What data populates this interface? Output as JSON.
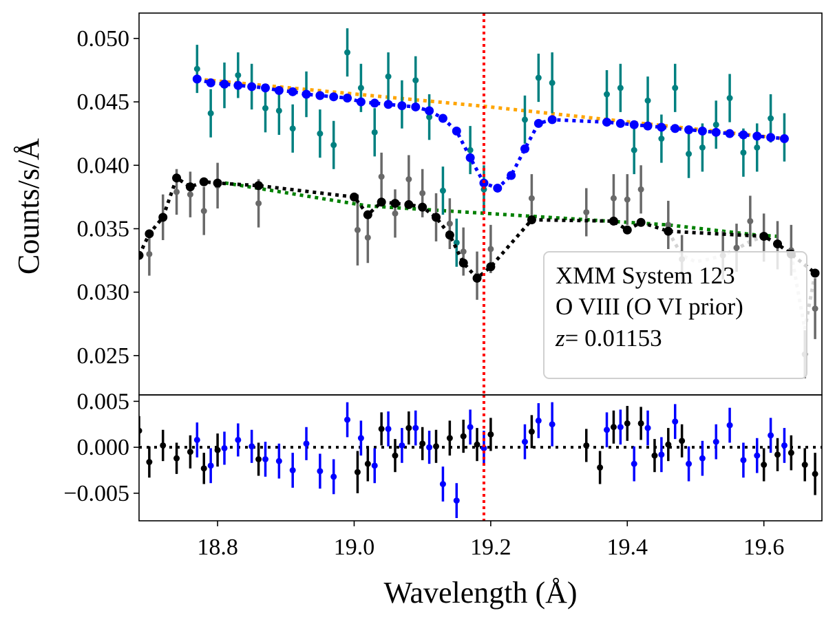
{
  "chart_data": {
    "type": "scatter",
    "xlabel": "Wavelength (Å)",
    "ylabel": "Counts/s/Å",
    "xlim": [
      18.685,
      19.685
    ],
    "x_ticks": [
      "18.8",
      "19.0",
      "19.2",
      "19.4",
      "19.6"
    ],
    "legend": {
      "location": "lower-right",
      "lines": [
        "XMM System 123",
        "O VIII (O VI prior)",
        "z",
        "= 0.01153"
      ]
    },
    "reference_line": {
      "x": 19.19,
      "color": "#ff0000",
      "style": "dotted"
    },
    "main_panel": {
      "ylim": [
        0.0219,
        0.052
      ],
      "y_ticks": [
        "0.025",
        "0.030",
        "0.035",
        "0.040",
        "0.045",
        "0.050"
      ],
      "series": [
        {
          "name": "upper continuum",
          "kind": "line",
          "color": "#ffa500",
          "x": [
            18.77,
            19.19,
            19.63
          ],
          "y": [
            0.0468,
            0.04465,
            0.0421
          ]
        },
        {
          "name": "upper model",
          "kind": "line-markers",
          "color": "#0000ff",
          "x": [
            18.77,
            18.79,
            18.81,
            18.83,
            18.85,
            18.87,
            18.89,
            18.91,
            18.93,
            18.95,
            18.97,
            18.99,
            19.01,
            19.03,
            19.05,
            19.07,
            19.09,
            19.11,
            19.13,
            19.15,
            19.17,
            19.19,
            19.21,
            19.23,
            19.25,
            19.27,
            19.29,
            19.37,
            19.39,
            19.41,
            19.43,
            19.45,
            19.47,
            19.49,
            19.51,
            19.53,
            19.55,
            19.57,
            19.59,
            19.61,
            19.63
          ],
          "y": [
            0.0468,
            0.0465,
            0.0464,
            0.0463,
            0.0462,
            0.0461,
            0.0459,
            0.0458,
            0.0456,
            0.0455,
            0.0454,
            0.0453,
            0.045,
            0.0449,
            0.0448,
            0.0447,
            0.0446,
            0.0443,
            0.0437,
            0.0427,
            0.0406,
            0.0386,
            0.0382,
            0.0392,
            0.0413,
            0.0433,
            0.0436,
            0.0434,
            0.0433,
            0.0432,
            0.0431,
            0.043,
            0.0429,
            0.0428,
            0.0427,
            0.0426,
            0.0425,
            0.0424,
            0.0423,
            0.0422,
            0.0421
          ]
        },
        {
          "name": "upper data",
          "kind": "errorbar",
          "color": "#008080",
          "x": [
            18.77,
            18.79,
            18.81,
            18.83,
            18.85,
            18.87,
            18.89,
            18.91,
            18.93,
            18.95,
            18.97,
            18.99,
            19.01,
            19.03,
            19.05,
            19.07,
            19.09,
            19.11,
            19.13,
            19.15,
            19.17,
            19.19,
            19.25,
            19.27,
            19.29,
            19.37,
            19.39,
            19.41,
            19.43,
            19.45,
            19.47,
            19.49,
            19.51,
            19.53,
            19.55,
            19.57,
            19.59,
            19.61,
            19.63
          ],
          "y": [
            0.0476,
            0.0441,
            0.0463,
            0.0471,
            0.0462,
            0.0445,
            0.0443,
            0.0429,
            0.0456,
            0.0425,
            0.0416,
            0.0489,
            0.0461,
            0.0426,
            0.047,
            0.0448,
            0.0467,
            0.0438,
            0.038,
            0.0339,
            0.0412,
            0.0381,
            0.0436,
            0.0469,
            0.0465,
            0.0456,
            0.0461,
            0.0412,
            0.0451,
            0.0421,
            0.0461,
            0.0409,
            0.0414,
            0.0432,
            0.0453,
            0.041,
            0.0414,
            0.0437,
            0.0422
          ],
          "err": [
            0.0019,
            0.0019,
            0.0018,
            0.0018,
            0.0018,
            0.0019,
            0.0019,
            0.0019,
            0.0018,
            0.0019,
            0.0019,
            0.0019,
            0.0019,
            0.0019,
            0.0019,
            0.0019,
            0.0019,
            0.0018,
            0.0019,
            0.0019,
            0.0019,
            0.0019,
            0.0019,
            0.0019,
            0.0024,
            0.0019,
            0.0019,
            0.0019,
            0.0019,
            0.0019,
            0.0019,
            0.0019,
            0.0019,
            0.0019,
            0.0019,
            0.0019,
            0.0019,
            0.0019,
            0.0019
          ]
        },
        {
          "name": "lower continuum",
          "kind": "line",
          "color": "#008000",
          "x": [
            18.8,
            19.02,
            19.46,
            19.59,
            19.62
          ],
          "y": [
            0.0387,
            0.0368,
            0.0353,
            0.0345,
            0.0344
          ]
        },
        {
          "name": "lower model",
          "kind": "line-markers",
          "color": "#000000",
          "x": [
            18.685,
            18.7,
            18.72,
            18.74,
            18.76,
            18.78,
            18.8,
            18.86,
            19.0,
            19.02,
            19.04,
            19.06,
            19.08,
            19.1,
            19.12,
            19.14,
            19.16,
            19.18,
            19.2,
            19.26,
            19.38,
            19.4,
            19.42,
            19.46,
            19.6,
            19.62,
            19.64,
            19.675
          ],
          "y": [
            0.0329,
            0.0346,
            0.0359,
            0.039,
            0.0383,
            0.0387,
            0.0386,
            0.0384,
            0.0375,
            0.0361,
            0.0371,
            0.037,
            0.0369,
            0.0367,
            0.0359,
            0.0345,
            0.0323,
            0.0311,
            0.032,
            0.0357,
            0.0356,
            0.0349,
            0.0355,
            0.0348,
            0.0344,
            0.0338,
            0.033,
            0.0315
          ]
        },
        {
          "name": "lower model faint",
          "kind": "line",
          "color": "#d3d3d3",
          "x": [
            19.46,
            19.48,
            19.5,
            19.52,
            19.54,
            19.56,
            19.58,
            19.6
          ],
          "y": [
            0.0348,
            0.0329,
            0.0324,
            0.0326,
            0.0329,
            0.0334,
            0.034,
            0.0344
          ]
        },
        {
          "name": "lower model faint tail",
          "kind": "line",
          "color": "#d3d3d3",
          "x": [
            19.64,
            19.66,
            19.675
          ],
          "y": [
            0.033,
            0.0271,
            0.0315
          ]
        },
        {
          "name": "lower data",
          "kind": "errorbar",
          "color": "#696969",
          "x": [
            18.7,
            18.72,
            18.74,
            18.76,
            18.78,
            18.8,
            18.86,
            19.005,
            19.02,
            19.04,
            19.06,
            19.08,
            19.1,
            19.12,
            19.14,
            19.16,
            19.18,
            19.2,
            19.26,
            19.34,
            19.38,
            19.4,
            19.42,
            19.46,
            19.48,
            19.54,
            19.56,
            19.58,
            19.6,
            19.62,
            19.64,
            19.66,
            19.675
          ],
          "y": [
            0.033,
            0.0359,
            0.0379,
            0.0377,
            0.0364,
            0.0384,
            0.037,
            0.0349,
            0.0343,
            0.0391,
            0.0362,
            0.0389,
            0.0378,
            0.0359,
            0.0354,
            0.0332,
            0.0313,
            0.0334,
            0.0374,
            0.0363,
            0.0374,
            0.0373,
            0.0381,
            0.0353,
            0.0326,
            0.0329,
            0.0335,
            0.0356,
            0.0343,
            0.0337,
            0.0333,
            0.0251,
            0.0287
          ],
          "err": [
            0.0017,
            0.0018,
            0.0018,
            0.0018,
            0.0019,
            0.0018,
            0.0019,
            0.0028,
            0.002,
            0.0019,
            0.0019,
            0.0019,
            0.0019,
            0.0019,
            0.002,
            0.0019,
            0.0019,
            0.0019,
            0.0019,
            0.0019,
            0.0019,
            0.002,
            0.0019,
            0.0019,
            0.0019,
            0.0019,
            0.0019,
            0.002,
            0.0019,
            0.0019,
            0.002,
            0.0019,
            0.0024
          ]
        }
      ]
    },
    "residual_panel": {
      "ylim": [
        -0.008,
        0.0057
      ],
      "y_ticks": [
        "0.005",
        "0.000",
        "−0.005"
      ],
      "zero_line": {
        "y": 0.0,
        "color": "#000000",
        "style": "dotted"
      },
      "series": [
        {
          "name": "residuals black",
          "kind": "errorbar",
          "color": "#000000",
          "x": [
            18.685,
            18.7,
            18.72,
            18.74,
            18.76,
            18.78,
            18.8,
            18.86,
            19.005,
            19.02,
            19.04,
            19.06,
            19.08,
            19.1,
            19.12,
            19.14,
            19.16,
            19.18,
            19.2,
            19.26,
            19.34,
            19.36,
            19.38,
            19.4,
            19.42,
            19.44,
            19.46,
            19.48,
            19.6,
            19.62,
            19.64,
            19.66,
            19.675
          ],
          "y": [
            0.0018,
            -0.0016,
            0.0002,
            -0.0012,
            -0.0005,
            -0.0023,
            -0.0003,
            -0.0013,
            -0.0027,
            -0.0018,
            0.002,
            -0.0009,
            0.0021,
            0.0004,
            0.0001,
            0.001,
            0.0012,
            0.0003,
            0.0014,
            0.0017,
            0.0002,
            -0.0022,
            0.0022,
            0.0026,
            0.0026,
            -0.0009,
            0.0003,
            0.0007,
            -0.0019,
            -0.0008,
            -0.0006,
            -0.0019,
            -0.0029
          ],
          "err": [
            0.0016,
            0.0017,
            0.0017,
            0.0017,
            0.0018,
            0.0017,
            0.0018,
            0.0018,
            0.0023,
            0.0019,
            0.0018,
            0.0018,
            0.0018,
            0.0018,
            0.0018,
            0.0019,
            0.0018,
            0.0018,
            0.0018,
            0.0018,
            0.0018,
            0.0018,
            0.0018,
            0.0019,
            0.0018,
            0.0018,
            0.0018,
            0.0018,
            0.0018,
            0.0018,
            0.0019,
            0.0018,
            0.0023
          ]
        },
        {
          "name": "residuals blue",
          "kind": "errorbar",
          "color": "#0000ff",
          "x": [
            18.77,
            18.79,
            18.81,
            18.83,
            18.85,
            18.87,
            18.89,
            18.91,
            18.93,
            18.95,
            18.97,
            18.99,
            19.01,
            19.03,
            19.05,
            19.07,
            19.09,
            19.11,
            19.13,
            19.15,
            19.17,
            19.19,
            19.25,
            19.27,
            19.29,
            19.37,
            19.39,
            19.41,
            19.43,
            19.45,
            19.47,
            19.49,
            19.51,
            19.53,
            19.55,
            19.57,
            19.59,
            19.61,
            19.63
          ],
          "y": [
            0.0008,
            -0.002,
            -0.0001,
            0.0008,
            0.0001,
            -0.0013,
            -0.0015,
            -0.0025,
            0.0004,
            -0.0026,
            -0.0032,
            0.003,
            0.001,
            -0.002,
            0.002,
            0.0002,
            0.0021,
            0.0,
            -0.004,
            -0.0058,
            0.0022,
            -0.0001,
            0.0006,
            0.0029,
            0.0025,
            0.0019,
            0.0022,
            -0.0018,
            0.0021,
            -0.0008,
            0.0028,
            -0.0018,
            -0.0012,
            0.0006,
            0.0024,
            -0.0014,
            -0.0009,
            0.0013,
            0.0002
          ],
          "err": [
            0.0019,
            0.0019,
            0.0018,
            0.0018,
            0.0018,
            0.0019,
            0.0019,
            0.0019,
            0.0018,
            0.0019,
            0.0019,
            0.0019,
            0.0019,
            0.0019,
            0.0019,
            0.0019,
            0.0019,
            0.0018,
            0.0019,
            0.0019,
            0.0019,
            0.0019,
            0.0019,
            0.0019,
            0.0024,
            0.0019,
            0.0019,
            0.0019,
            0.0019,
            0.0019,
            0.0019,
            0.0019,
            0.0019,
            0.0019,
            0.0019,
            0.0019,
            0.0019,
            0.0019,
            0.0019
          ]
        }
      ]
    }
  }
}
